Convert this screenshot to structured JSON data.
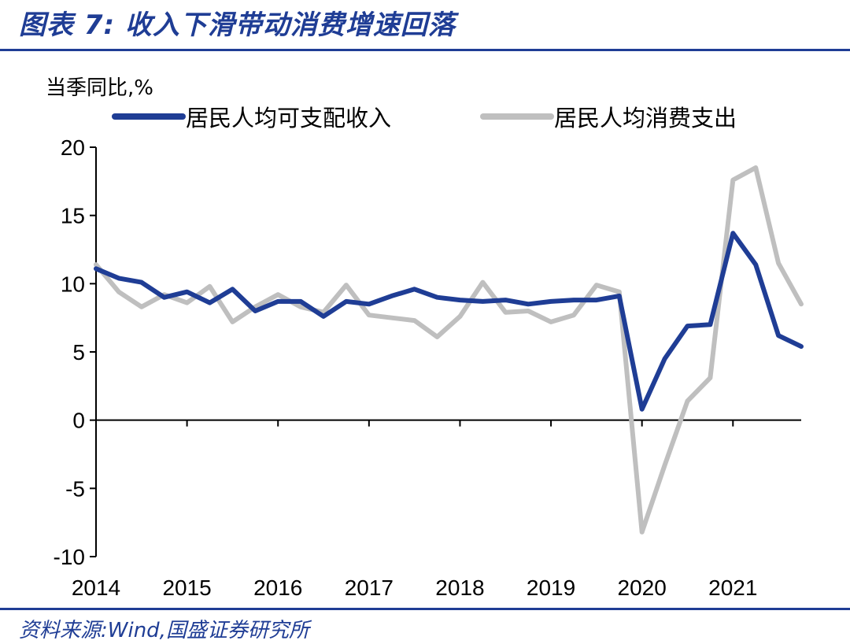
{
  "header": {
    "title": "图表 7:  收入下滑带动消费增速回落",
    "source": "资料来源:Wind,国盛证券研究所"
  },
  "colors": {
    "brand": "#1f3d95",
    "income": "#1f3d95",
    "consumption": "#bfbfbf"
  },
  "chart_data": {
    "type": "line",
    "ylabel": "当季同比,%",
    "ylim": [
      -10,
      20
    ],
    "yticks": [
      "20",
      "15",
      "10",
      "5",
      "0",
      "-5",
      "-10"
    ],
    "ytick_values": [
      20,
      15,
      10,
      5,
      0,
      -5,
      -10
    ],
    "x_tick_labels": [
      "2014",
      "2015",
      "2016",
      "2017",
      "2018",
      "2019",
      "2020",
      "2021"
    ],
    "legend_position": "top",
    "grid": false,
    "x": [
      "2014Q1",
      "2014Q2",
      "2014Q3",
      "2014Q4",
      "2015Q1",
      "2015Q2",
      "2015Q3",
      "2015Q4",
      "2016Q1",
      "2016Q2",
      "2016Q3",
      "2016Q4",
      "2017Q1",
      "2017Q2",
      "2017Q3",
      "2017Q4",
      "2018Q1",
      "2018Q2",
      "2018Q3",
      "2018Q4",
      "2019Q1",
      "2019Q2",
      "2019Q3",
      "2019Q4",
      "2020Q1",
      "2020Q2",
      "2020Q3",
      "2020Q4",
      "2021Q1",
      "2021Q2",
      "2021Q3",
      "2021Q4"
    ],
    "series": [
      {
        "name": "居民人均可支配收入",
        "color": "#1f3d95",
        "values": [
          11.1,
          10.4,
          10.1,
          9.0,
          9.4,
          8.6,
          9.6,
          8.0,
          8.7,
          8.7,
          7.6,
          8.7,
          8.5,
          9.1,
          9.6,
          9.0,
          8.8,
          8.7,
          8.8,
          8.5,
          8.7,
          8.8,
          8.8,
          9.1,
          0.8,
          4.5,
          6.9,
          7.0,
          13.7,
          11.4,
          6.2,
          5.4
        ]
      },
      {
        "name": "居民人均消费支出",
        "color": "#bfbfbf",
        "values": [
          11.4,
          9.4,
          8.3,
          9.2,
          8.6,
          9.8,
          7.2,
          8.3,
          9.2,
          8.3,
          7.9,
          9.9,
          7.7,
          7.5,
          7.3,
          6.1,
          7.6,
          10.1,
          7.9,
          8.0,
          7.2,
          7.7,
          9.9,
          9.4,
          -8.2,
          -3.3,
          1.4,
          3.1,
          17.6,
          18.5,
          11.5,
          8.5
        ]
      }
    ]
  }
}
